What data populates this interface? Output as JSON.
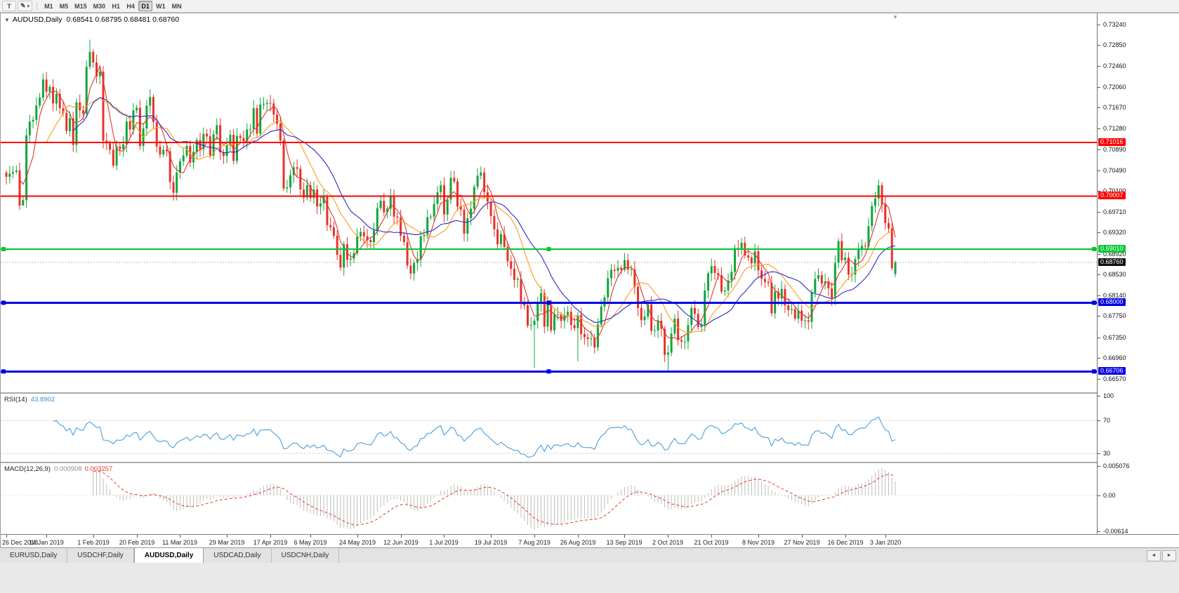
{
  "toolbar": {
    "tools": [
      {
        "label": "T"
      },
      {
        "label": "✎"
      }
    ],
    "timeframes": [
      "M1",
      "M5",
      "M15",
      "M30",
      "H1",
      "H4",
      "D1",
      "W1",
      "MN"
    ],
    "active_timeframe": "D1"
  },
  "icons": {
    "one_click_trading": "▼",
    "dropdown_caret": "▾",
    "scroll_left": "◄",
    "scroll_right": "►",
    "shift_marker": "▼"
  },
  "chart_data": {
    "type": "candlestick",
    "symbol": "AUDUSD",
    "timeframe": "Daily",
    "header_symbol": "AUDUSD,Daily",
    "header_ohlc": "0.68541 0.68795 0.68481 0.68760",
    "last_candle": {
      "open": 0.68541,
      "high": 0.68795,
      "low": 0.68481,
      "close": 0.6876
    },
    "price_scale": {
      "min": 0.6642,
      "max": 0.7334,
      "labels": [
        "0.73240",
        "0.72850",
        "0.72460",
        "0.72060",
        "0.71670",
        "0.71280",
        "0.70890",
        "0.70490",
        "0.70100",
        "0.69710",
        "0.69320",
        "0.68920",
        "0.68530",
        "0.68140",
        "0.67750",
        "0.67350",
        "0.66960",
        "0.66570"
      ]
    },
    "candle_colors": {
      "up": "#11A63C",
      "down": "#E8322A"
    },
    "closes": [
      0.7037,
      0.7043,
      0.7046,
      0.7049,
      0.6983,
      0.6993,
      0.7115,
      0.7141,
      0.7144,
      0.7171,
      0.7186,
      0.722,
      0.7197,
      0.7206,
      0.7175,
      0.7193,
      0.7166,
      0.7157,
      0.7123,
      0.7147,
      0.7097,
      0.7177,
      0.7162,
      0.7156,
      0.7244,
      0.7272,
      0.7252,
      0.7226,
      0.7235,
      0.7105,
      0.71,
      0.7088,
      0.7058,
      0.7094,
      0.7089,
      0.7098,
      0.7141,
      0.7126,
      0.7162,
      0.7167,
      0.7095,
      0.7128,
      0.7171,
      0.7187,
      0.714,
      0.7094,
      0.7079,
      0.7088,
      0.7085,
      0.7027,
      0.7007,
      0.7045,
      0.7066,
      0.7077,
      0.7095,
      0.7064,
      0.7084,
      0.7106,
      0.7089,
      0.7118,
      0.7113,
      0.7077,
      0.7117,
      0.7134,
      0.7083,
      0.7076,
      0.7096,
      0.7116,
      0.7067,
      0.7114,
      0.711,
      0.7104,
      0.7126,
      0.7127,
      0.7166,
      0.7118,
      0.7173,
      0.7174,
      0.7176,
      0.7175,
      0.7154,
      0.7137,
      0.7105,
      0.7015,
      0.7017,
      0.704,
      0.7055,
      0.7052,
      0.7013,
      0.6998,
      0.7021,
      0.6997,
      0.7013,
      0.6981,
      0.6987,
      0.6999,
      0.6946,
      0.6942,
      0.6926,
      0.689,
      0.6866,
      0.691,
      0.6881,
      0.6883,
      0.6893,
      0.6925,
      0.6933,
      0.6925,
      0.6918,
      0.6914,
      0.6936,
      0.6978,
      0.6992,
      0.697,
      0.6977,
      0.7001,
      0.6962,
      0.696,
      0.6926,
      0.6914,
      0.687,
      0.6855,
      0.6875,
      0.6882,
      0.6925,
      0.6928,
      0.6961,
      0.6962,
      0.6986,
      0.7008,
      0.7021,
      0.6966,
      0.6994,
      0.7035,
      0.7028,
      0.6981,
      0.6975,
      0.693,
      0.6959,
      0.6977,
      0.7018,
      0.7039,
      0.7045,
      0.7008,
      0.699,
      0.6963,
      0.6938,
      0.691,
      0.6929,
      0.6905,
      0.6878,
      0.6864,
      0.6843,
      0.6845,
      0.68,
      0.6795,
      0.6757,
      0.6758,
      0.6766,
      0.6798,
      0.6818,
      0.6755,
      0.6797,
      0.6748,
      0.6778,
      0.6778,
      0.6766,
      0.6777,
      0.6783,
      0.6758,
      0.6752,
      0.6777,
      0.6741,
      0.6735,
      0.6732,
      0.6733,
      0.6716,
      0.6759,
      0.6793,
      0.681,
      0.6846,
      0.6862,
      0.686,
      0.6866,
      0.6862,
      0.688,
      0.6862,
      0.6863,
      0.683,
      0.679,
      0.6767,
      0.6774,
      0.6797,
      0.6747,
      0.6748,
      0.6766,
      0.6751,
      0.6702,
      0.6706,
      0.6742,
      0.677,
      0.673,
      0.6727,
      0.6727,
      0.6758,
      0.679,
      0.6779,
      0.6754,
      0.6759,
      0.6823,
      0.6855,
      0.6869,
      0.6856,
      0.6852,
      0.6821,
      0.6823,
      0.6842,
      0.6858,
      0.6903,
      0.69,
      0.6913,
      0.6889,
      0.6885,
      0.6874,
      0.6897,
      0.6861,
      0.6845,
      0.6839,
      0.6837,
      0.678,
      0.6821,
      0.6808,
      0.6826,
      0.6795,
      0.6786,
      0.6788,
      0.677,
      0.6785,
      0.6766,
      0.6767,
      0.6764,
      0.6819,
      0.6845,
      0.6852,
      0.6836,
      0.684,
      0.6827,
      0.6809,
      0.6875,
      0.6916,
      0.688,
      0.6885,
      0.6853,
      0.6853,
      0.6882,
      0.69,
      0.6907,
      0.6906,
      0.6944,
      0.6982,
      0.6996,
      0.7021,
      0.6985,
      0.695,
      0.694,
      0.6865,
      0.6876
    ],
    "wick_overrides": [
      {
        "bar": 5,
        "low": 0.6984
      },
      {
        "bar": 25,
        "high": 0.7295
      },
      {
        "bar": 100,
        "low": 0.686
      },
      {
        "bar": 158,
        "low": 0.6677
      },
      {
        "bar": 171,
        "low": 0.669
      },
      {
        "bar": 198,
        "low": 0.66706
      },
      {
        "bar": 261,
        "high": 0.7032
      }
    ],
    "x_ticks": [
      {
        "bar": 0,
        "label": "26 Dec 2018"
      },
      {
        "bar": 12,
        "label": "14 Jan 2019"
      },
      {
        "bar": 26,
        "label": "1 Feb 2019"
      },
      {
        "bar": 39,
        "label": "20 Feb 2019"
      },
      {
        "bar": 52,
        "label": "11 Mar 2019"
      },
      {
        "bar": 66,
        "label": "29 Mar 2019"
      },
      {
        "bar": 79,
        "label": "17 Apr 2019"
      },
      {
        "bar": 91,
        "label": "6 May 2019"
      },
      {
        "bar": 105,
        "label": "24 May 2019"
      },
      {
        "bar": 118,
        "label": "12 Jun 2019"
      },
      {
        "bar": 131,
        "label": "1 Jul 2019"
      },
      {
        "bar": 145,
        "label": "19 Jul 2019"
      },
      {
        "bar": 158,
        "label": "7 Aug 2019"
      },
      {
        "bar": 171,
        "label": "26 Aug 2019"
      },
      {
        "bar": 185,
        "label": "13 Sep 2019"
      },
      {
        "bar": 198,
        "label": "2 Oct 2019"
      },
      {
        "bar": 211,
        "label": "21 Oct 2019"
      },
      {
        "bar": 225,
        "label": "8 Nov 2019"
      },
      {
        "bar": 238,
        "label": "27 Nov 2019"
      },
      {
        "bar": 251,
        "label": "16 Dec 2019"
      },
      {
        "bar": 263,
        "label": "3 Jan 2020"
      }
    ],
    "moving_averages": [
      {
        "period": 5,
        "color": "#E0362B"
      },
      {
        "period": 13,
        "color": "#FF9C1A"
      },
      {
        "period": 21,
        "color": "#2A2AC8"
      }
    ],
    "h_lines": [
      {
        "value": 0.71016,
        "label": "0.71016",
        "color": "#FF0000",
        "width": 2,
        "handles": false
      },
      {
        "value": 0.70007,
        "label": "0.70007",
        "color": "#FF0000",
        "width": 2,
        "handles": false
      },
      {
        "value": 0.6901,
        "label": "0.69010",
        "color": "#00C832",
        "width": 2,
        "handles": true
      },
      {
        "value": 0.68,
        "label": "0.68000",
        "color": "#0000E6",
        "width": 3,
        "handles": true
      },
      {
        "value": 0.66706,
        "label": "0.66706",
        "color": "#0000E6",
        "width": 3,
        "handles": true
      }
    ],
    "bid": {
      "value": 0.6876,
      "label": "0.68760"
    },
    "indicators": [
      {
        "name": "RSI",
        "label": "RSI(14)",
        "value": "43.8902",
        "color": "#4A9ED9",
        "range": [
          20,
          102
        ],
        "levels": [
          70,
          30
        ],
        "scale_marks": [
          {
            "text": "100",
            "v": 100
          },
          {
            "text": "70",
            "v": 70
          },
          {
            "text": "30",
            "v": 30
          }
        ]
      },
      {
        "name": "MACD",
        "label": "MACD(12,26,9)",
        "value_main": "0.000908",
        "value_signal": "0.003257",
        "histogram_color": "#BDBDBD",
        "signal_color": "#E8382C",
        "range": [
          -0.00614,
          0.005076
        ],
        "scale_marks": [
          {
            "text": "0.005076",
            "v": 0.005076
          },
          {
            "text": "0.00",
            "v": 0
          },
          {
            "text": "-0.00614",
            "v": -0.00614
          }
        ]
      }
    ]
  },
  "bottom_tabs": {
    "tabs": [
      "EURUSD,Daily",
      "USDCHF,Daily",
      "AUDUSD,Daily",
      "USDCAD,Daily",
      "USDCNH,Daily"
    ],
    "active": "AUDUSD,Daily"
  }
}
